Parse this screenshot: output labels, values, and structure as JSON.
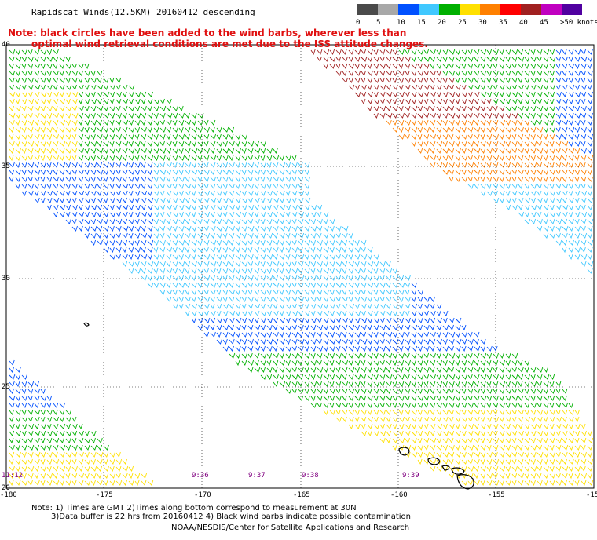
{
  "header": {
    "title": "Rapidscat Winds(12.5KM) 20160412 descending",
    "note_line1": "Note: black circles have been added to the wind barbs, wherever less than",
    "note_line2": "optimal wind retrieval conditions are met due to the ISS attitude changes."
  },
  "legend": {
    "labels": [
      "0",
      "5",
      "10",
      "15",
      "20",
      "25",
      "30",
      "35",
      "40",
      "45",
      ">50 knots"
    ],
    "colors": [
      "#4a4a4a",
      "#a8a8a8",
      "#0050ff",
      "#40c8ff",
      "#00b000",
      "#ffe000",
      "#ff8000",
      "#ff0000",
      "#a02020",
      "#c000c0",
      "#5000a0"
    ]
  },
  "axes": {
    "lon_labels": [
      "-180",
      "-175",
      "-170",
      "-165",
      "-160",
      "-155",
      "-15"
    ],
    "lat_labels": [
      "40",
      "35",
      "30",
      "25",
      "20"
    ]
  },
  "time_labels": [
    "11:12",
    "9:36",
    "9:37",
    "9:38",
    "9:39"
  ],
  "footer": {
    "line1": "Note: 1) Times are GMT 2)Times along bottom correspond to measurement at 30N",
    "line2": "3)Data buffer is 22 hrs from 20160412 4) Black wind barbs indicate possible contamination",
    "line3": "NOAA/NESDIS/Center for Satellite Applications and Research"
  }
}
